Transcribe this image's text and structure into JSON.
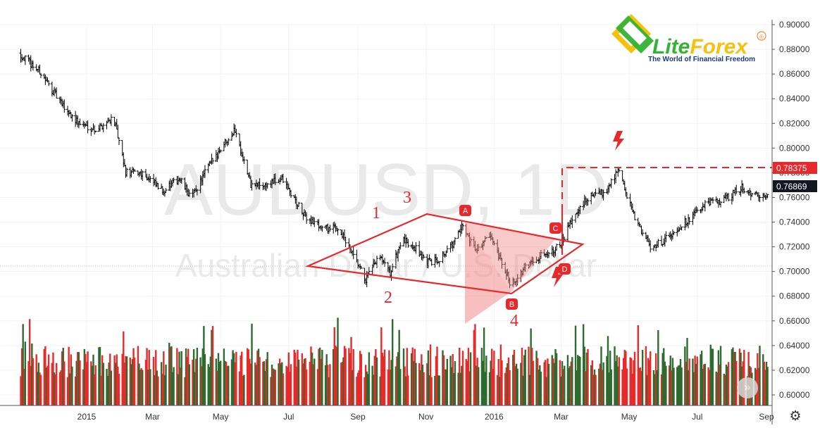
{
  "chart_data": {
    "type": "candlestick",
    "symbol": "AUDUSD",
    "timeframe": "1D",
    "watermark_symbol": "AUDUSD, 1D",
    "watermark_name": "Australian Dollar / U.S. Dollar",
    "x_tick_labels": [
      "2015",
      "Mar",
      "May",
      "Jul",
      "Sep",
      "Nov",
      "2016",
      "Mar",
      "May",
      "Jul",
      "Sep"
    ],
    "y_tick_labels": [
      "0.90000",
      "0.88000",
      "0.86000",
      "0.84000",
      "0.82000",
      "0.80000",
      "0.78000",
      "0.76000",
      "0.74000",
      "0.72000",
      "0.70000",
      "0.68000",
      "0.66000",
      "0.64000",
      "0.62000",
      "0.60000"
    ],
    "ylim": [
      0.595,
      0.905
    ],
    "price_path": [
      [
        "2014-11-01",
        0.877
      ],
      [
        "2014-11-20",
        0.862
      ],
      [
        "2014-12-10",
        0.835
      ],
      [
        "2014-12-25",
        0.82
      ],
      [
        "2015-01-10",
        0.815
      ],
      [
        "2015-01-25",
        0.825
      ],
      [
        "2015-02-05",
        0.78
      ],
      [
        "2015-02-20",
        0.78
      ],
      [
        "2015-03-10",
        0.765
      ],
      [
        "2015-03-25",
        0.775
      ],
      [
        "2015-04-05",
        0.76
      ],
      [
        "2015-04-20",
        0.785
      ],
      [
        "2015-05-05",
        0.805
      ],
      [
        "2015-05-14",
        0.815
      ],
      [
        "2015-05-28",
        0.77
      ],
      [
        "2015-06-10",
        0.77
      ],
      [
        "2015-06-25",
        0.775
      ],
      [
        "2015-07-15",
        0.745
      ],
      [
        "2015-08-01",
        0.735
      ],
      [
        "2015-08-15",
        0.735
      ],
      [
        "2015-09-01",
        0.705
      ],
      [
        "2015-09-08",
        0.693
      ],
      [
        "2015-09-20",
        0.712
      ],
      [
        "2015-09-30",
        0.698
      ],
      [
        "2015-10-10",
        0.725
      ],
      [
        "2015-10-20",
        0.722
      ],
      [
        "2015-11-02",
        0.707
      ],
      [
        "2015-11-12",
        0.71
      ],
      [
        "2015-11-25",
        0.722
      ],
      [
        "2015-12-04",
        0.737
      ],
      [
        "2015-12-15",
        0.718
      ],
      [
        "2015-12-28",
        0.728
      ],
      [
        "2016-01-08",
        0.706
      ],
      [
        "2016-01-16",
        0.69
      ],
      [
        "2016-01-22",
        0.695
      ],
      [
        "2016-02-05",
        0.71
      ],
      [
        "2016-02-20",
        0.716
      ],
      [
        "2016-03-01",
        0.722
      ],
      [
        "2016-03-10",
        0.74
      ],
      [
        "2016-03-25",
        0.76
      ],
      [
        "2016-04-10",
        0.765
      ],
      [
        "2016-04-21",
        0.783
      ],
      [
        "2016-05-05",
        0.745
      ],
      [
        "2016-05-20",
        0.72
      ],
      [
        "2016-06-01",
        0.725
      ],
      [
        "2016-06-20",
        0.74
      ],
      [
        "2016-07-10",
        0.755
      ],
      [
        "2016-07-25",
        0.758
      ],
      [
        "2016-08-10",
        0.768
      ],
      [
        "2016-08-25",
        0.76
      ],
      [
        "2016-09-05",
        0.763
      ]
    ],
    "last_price": "0.76869",
    "resistance_price": "0.78375",
    "pattern_labels": [
      "1",
      "2",
      "3",
      "4"
    ],
    "point_labels": [
      "A",
      "B",
      "C",
      "D"
    ],
    "volume_axis": "unlabeled bars, green = up day, red = down day"
  },
  "logo": {
    "brand_a": "Lite",
    "brand_b": "Forex",
    "tagline": "The World of Financial Freedom",
    "registered_mark": "®"
  },
  "colors": {
    "up": "#2e6b2e",
    "down": "#e52b2b",
    "pattern": "#e8292c",
    "pattern_fill": "#f08a8a",
    "last_price_tag": "#131722",
    "resistance_tag": "#e8292c"
  },
  "controls": {
    "scroll_right_glyph": "»",
    "settings_glyph": "⚙"
  }
}
